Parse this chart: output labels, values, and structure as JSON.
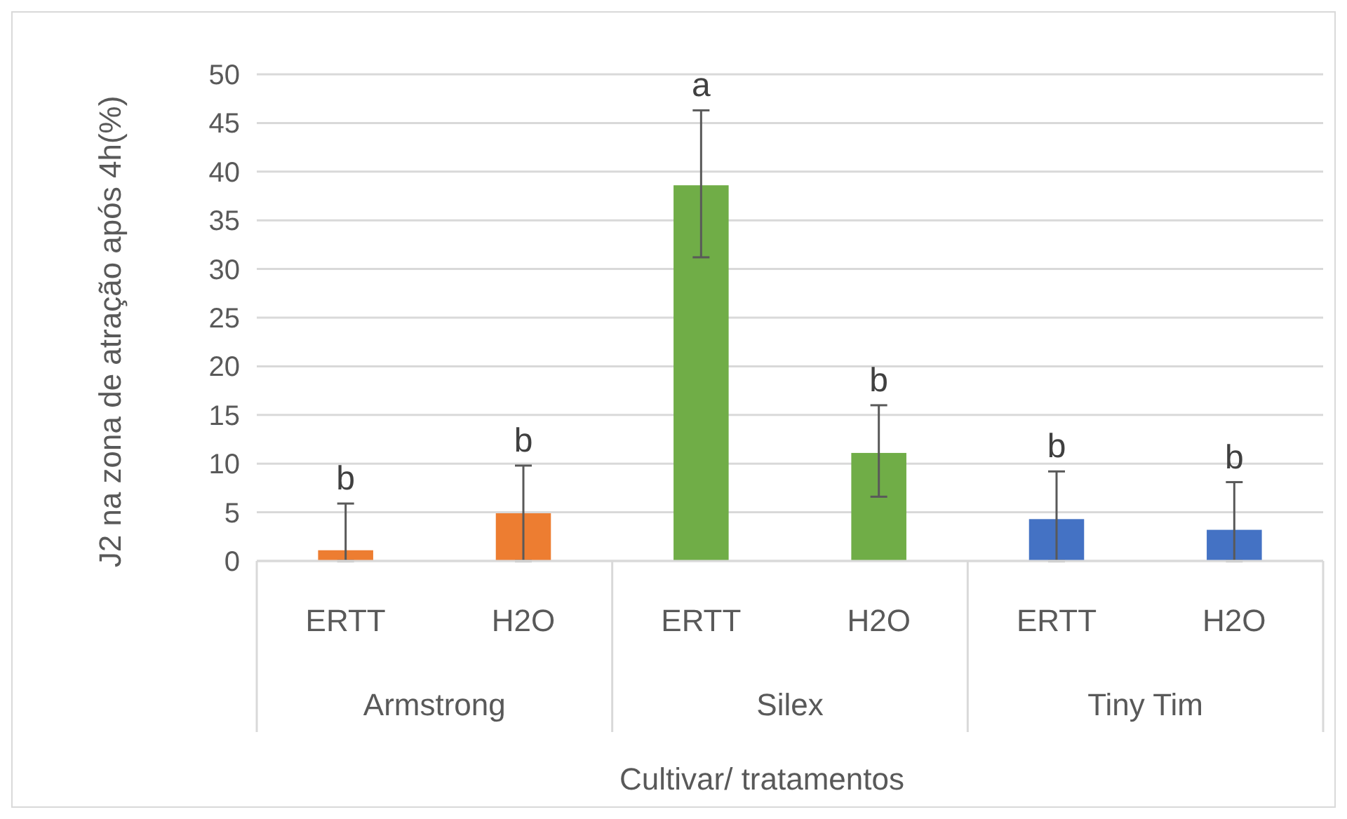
{
  "chart_data": {
    "type": "bar",
    "xlabel": "Cultivar/ tratamentos",
    "ylabel": "J2 na zona de atração após 4h(%)",
    "categories": [
      "ERTT",
      "H2O",
      "ERTT",
      "H2O",
      "ERTT",
      "H2O"
    ],
    "values": [
      1.1,
      4.9,
      38.6,
      11.1,
      4.3,
      3.2
    ],
    "colors": [
      "#ed7d31",
      "#ed7d31",
      "#70ad47",
      "#70ad47",
      "#4472c4",
      "#4472c4"
    ],
    "errors": [
      [
        0,
        5.9
      ],
      [
        0,
        9.8
      ],
      [
        31.2,
        46.3
      ],
      [
        6.6,
        16.0
      ],
      [
        0,
        9.2
      ],
      [
        0,
        8.1
      ]
    ],
    "value_labels": [
      "b",
      "b",
      "a",
      "b",
      "b",
      "b"
    ],
    "annotations": [
      "Armstrong",
      "Silex",
      "Tiny Tim"
    ],
    "ylim": [
      0,
      50
    ],
    "yticks": [
      0,
      5,
      10,
      15,
      20,
      25,
      30,
      35,
      40,
      45,
      50
    ],
    "grid": "y"
  }
}
